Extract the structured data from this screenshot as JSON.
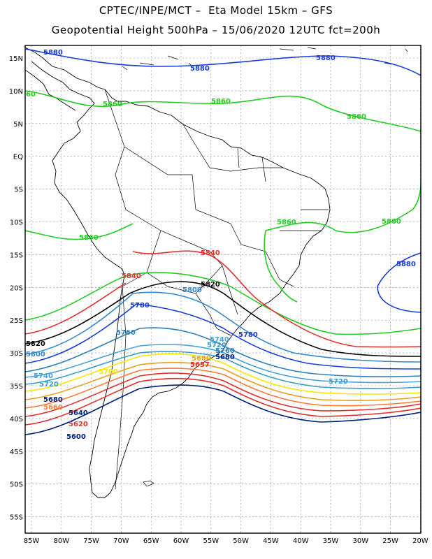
{
  "title_line1": "CPTEC/INPE/MCT –  Eta Model 15km – GFS",
  "title_line2": "Geopotential Height 500hPa – 15/06/2020 12UTC fct=200h",
  "lat_labels": [
    "15N",
    "10N",
    "5N",
    "EQ",
    "5S",
    "10S",
    "15S",
    "20S",
    "25S",
    "30S",
    "35S",
    "40S",
    "45S",
    "50S",
    "55S"
  ],
  "lon_labels": [
    "85W",
    "80W",
    "75W",
    "70W",
    "65W",
    "60W",
    "55W",
    "50W",
    "45W",
    "40W",
    "35W",
    "30W",
    "25W",
    "20W"
  ],
  "contour_colors": {
    "5880": "#1a3cd8",
    "5860": "#22cc22",
    "5840": "#e03030",
    "5820": "#000000",
    "5800": "#3388cc",
    "5780": "#1a3cd8",
    "5760": "#2c7fb8",
    "5740": "#4aa0d8",
    "5720": "#3c9cc8",
    "5700": "#f5e800",
    "5680": "#e8a020",
    "5660": "#ff7a33",
    "5640": "#e03030",
    "5620": "#e03030",
    "5600": "#00207a"
  },
  "contour_labels": [
    {
      "id": "l1",
      "text": "5880",
      "color": "5880"
    },
    {
      "id": "l2",
      "text": "5880",
      "color": "5880"
    },
    {
      "id": "l3",
      "text": "5880",
      "color": "5880"
    },
    {
      "id": "l4",
      "text": "60",
      "color": "5860"
    },
    {
      "id": "l5",
      "text": "5860",
      "color": "5860"
    },
    {
      "id": "l6",
      "text": "5860",
      "color": "5860"
    },
    {
      "id": "l7",
      "text": "5860",
      "color": "5860"
    },
    {
      "id": "l8",
      "text": "5860",
      "color": "5860"
    },
    {
      "id": "l9",
      "text": "5860",
      "color": "5860"
    },
    {
      "id": "l10",
      "text": "5860",
      "color": "5860"
    },
    {
      "id": "l11",
      "text": "5840",
      "color": "5840"
    },
    {
      "id": "l12",
      "text": "5880",
      "color": "5880"
    },
    {
      "id": "l13",
      "text": "5840",
      "color": "5840"
    },
    {
      "id": "l14",
      "text": "5820",
      "color": "5820"
    },
    {
      "id": "l15",
      "text": "5800",
      "color": "5800"
    },
    {
      "id": "l16",
      "text": "5780",
      "color": "5780"
    },
    {
      "id": "l17",
      "text": "5760",
      "color": "5760"
    },
    {
      "id": "l18",
      "text": "5820",
      "color": "5820"
    },
    {
      "id": "l19",
      "text": "5800",
      "color": "5800"
    },
    {
      "id": "l20",
      "text": "5780",
      "color": "5780"
    },
    {
      "id": "l21",
      "text": "5740",
      "color": "5740"
    },
    {
      "id": "l22",
      "text": "5720",
      "color": "5720"
    },
    {
      "id": "l23",
      "text": "5760",
      "color": "5760"
    },
    {
      "id": "l24",
      "text": "5680",
      "color": "5600"
    },
    {
      "id": "l25",
      "text": "5680",
      "color": "5680"
    },
    {
      "id": "l26",
      "text": "5700",
      "color": "5700"
    },
    {
      "id": "l27",
      "text": "5740",
      "color": "5740"
    },
    {
      "id": "l28",
      "text": "5720",
      "color": "5720"
    },
    {
      "id": "l29",
      "text": "5720",
      "color": "5720"
    },
    {
      "id": "l30",
      "text": "5680",
      "color": "5600"
    },
    {
      "id": "l31",
      "text": "5660",
      "color": "5660"
    },
    {
      "id": "l32",
      "text": "5640",
      "color": "5600"
    },
    {
      "id": "l33",
      "text": "5620",
      "color": "5620"
    },
    {
      "id": "l34",
      "text": "5600",
      "color": "5600"
    },
    {
      "id": "l35",
      "text": "5637",
      "color": "5640"
    }
  ]
}
